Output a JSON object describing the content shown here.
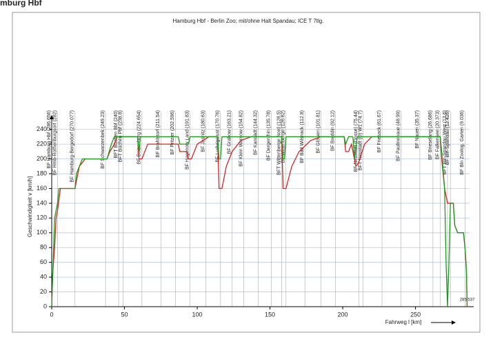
{
  "header_text": "mburg Hbf",
  "chart_data": {
    "type": "line",
    "title": "Hamburg Hbf - Berlin Zoo; mit/ohne Halt Spandau; ICE T 7tlg.",
    "x_label": "Fahrweg l [km]",
    "y_label": "Geschwindigkeit v [km/h]",
    "x_end": 285.537,
    "xlim": [
      0,
      290
    ],
    "xticks": [
      0,
      50,
      100,
      150,
      200,
      250
    ],
    "ylim": [
      0,
      250
    ],
    "yticks": [
      0,
      20,
      40,
      60,
      80,
      100,
      120,
      140,
      160,
      180,
      200,
      220,
      240
    ],
    "grid": true,
    "stations": [
      {
        "label": "BF Hamburg Hbf (286.656)",
        "x": 0
      },
      {
        "label": "BF Hmb-Rothenburgsort (282)",
        "x": 4
      },
      {
        "label": "BF Hamburg-Bergedorf (270.077)",
        "x": 16
      },
      {
        "label": "BF Schwarzenbek (249.23)",
        "x": 37
      },
      {
        "label": "BFT Büchen Bbf (240)",
        "x": 46
      },
      {
        "label": "BFT Büchen Pbf (238.8)",
        "x": 49
      },
      {
        "label": "BF Boizenburg (224.654)",
        "x": 62
      },
      {
        "label": "BF Brahlstorf (211.54)",
        "x": 75
      },
      {
        "label": "BF Pritzier (202.596)",
        "x": 85
      },
      {
        "label": "BF Hagenow Land (191.83)",
        "x": 95
      },
      {
        "label": "BF Jasnitz (180.63)",
        "x": 106
      },
      {
        "label": "BF Ludwigslust (170.76)",
        "x": 116
      },
      {
        "label": "BF Grabow (163.21)",
        "x": 124
      },
      {
        "label": "BF Klein Warnow (154.82)",
        "x": 132
      },
      {
        "label": "BF Karstädt (144.32)",
        "x": 142
      },
      {
        "label": "BF Dergenthin (135.78)",
        "x": 151
      },
      {
        "label": "BFT Wittenberge Nord (128.5)",
        "x": 158
      },
      {
        "label": "BF Wittenberge (126.62)",
        "x": 161
      },
      {
        "label": "BF Bad Wilsnack (112.8)",
        "x": 174
      },
      {
        "label": "BF Glöwen (101.81)",
        "x": 185
      },
      {
        "label": "BF Breddin (92.12)",
        "x": 195
      },
      {
        "label": "BF Neustadt (Dosse) (75.44)",
        "x": 211
      },
      {
        "label": "BFT Neustadt (D) W1 (74.7)",
        "x": 214
      },
      {
        "label": "BF Friesack (61.67)",
        "x": 227
      },
      {
        "label": "BF Paulinenaue (48.99)",
        "x": 240
      },
      {
        "label": "BF Nauen (35.37)",
        "x": 253
      },
      {
        "label": "BF Brieselang (26.686)",
        "x": 262
      },
      {
        "label": "BF Falkensee (20.373)",
        "x": 267
      },
      {
        "label": "BFT Bln-Spandau West (13.6)",
        "x": 272
      },
      {
        "label": "BF Bln-Spandau (12.426)",
        "x": 274
      },
      {
        "label": "BF Bln Zoolog. Garten (9.036)",
        "x": 284
      }
    ],
    "series": [
      {
        "color": "#dd2020",
        "x": [
          0,
          0.5,
          2,
          3,
          4,
          6,
          16,
          17,
          19,
          21,
          23,
          38,
          40,
          43,
          45,
          59,
          60,
          62,
          64,
          66,
          70,
          87,
          88,
          93,
          94,
          96,
          98,
          100,
          108,
          114,
          115,
          117,
          120,
          124,
          130,
          137,
          158,
          159,
          161,
          165,
          170,
          178,
          185,
          201,
          202,
          204,
          206,
          207,
          209,
          211,
          215,
          220,
          267,
          268,
          269,
          270,
          272,
          276,
          277,
          279,
          283,
          284,
          285,
          285.5
        ],
        "values": [
          0,
          40,
          80,
          120,
          130,
          160,
          160,
          170,
          190,
          195,
          200,
          200,
          210,
          220,
          230,
          230,
          200,
          200,
          210,
          220,
          220,
          220,
          210,
          210,
          200,
          200,
          210,
          220,
          230,
          230,
          160,
          160,
          190,
          210,
          225,
          230,
          230,
          160,
          160,
          190,
          210,
          225,
          230,
          230,
          210,
          210,
          220,
          210,
          190,
          195,
          220,
          230,
          230,
          200,
          180,
          160,
          140,
          140,
          110,
          100,
          100,
          80,
          50,
          0
        ]
      },
      {
        "color": "#1a9a1a",
        "x": [
          0,
          1,
          2,
          4,
          5,
          16,
          17,
          19,
          21,
          38,
          41,
          43,
          59,
          60,
          61,
          87,
          88,
          94,
          95,
          114,
          115,
          116,
          117,
          158,
          159,
          160,
          161,
          201,
          202,
          204,
          207,
          208,
          210,
          267,
          268,
          270,
          271,
          272,
          273,
          274,
          276,
          277,
          279,
          283,
          284,
          285,
          285.5
        ],
        "values": [
          0,
          60,
          120,
          140,
          160,
          160,
          180,
          190,
          200,
          200,
          220,
          230,
          230,
          210,
          230,
          230,
          220,
          220,
          230,
          230,
          200,
          200,
          230,
          230,
          200,
          200,
          230,
          230,
          220,
          230,
          230,
          200,
          230,
          230,
          210,
          160,
          60,
          0,
          60,
          140,
          140,
          110,
          100,
          100,
          80,
          50,
          0
        ]
      }
    ]
  }
}
